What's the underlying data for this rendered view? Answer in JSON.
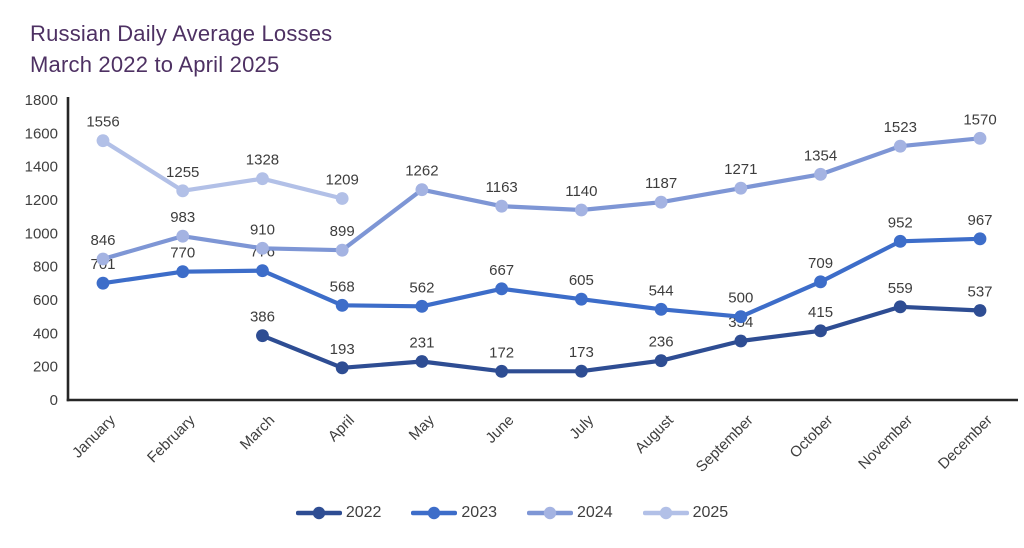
{
  "title": {
    "line1": "Russian Daily Average Losses",
    "line2": "March 2022 to April 2025"
  },
  "chart_data": {
    "type": "line",
    "categories": [
      "January",
      "February",
      "March",
      "April",
      "May",
      "June",
      "July",
      "August",
      "September",
      "October",
      "November",
      "December"
    ],
    "series": [
      {
        "name": "2022",
        "color": "#2e4d93",
        "marker_color": "#2e4d93",
        "values": [
          null,
          null,
          386,
          193,
          231,
          172,
          173,
          236,
          354,
          415,
          559,
          537
        ]
      },
      {
        "name": "2023",
        "color": "#3d6dc9",
        "marker_color": "#3d6dc9",
        "values": [
          701,
          770,
          776,
          568,
          562,
          667,
          605,
          544,
          500,
          709,
          952,
          967
        ]
      },
      {
        "name": "2024",
        "color": "#7e96d5",
        "marker_color": "#a4b3e2",
        "values": [
          846,
          983,
          910,
          899,
          1262,
          1163,
          1140,
          1187,
          1271,
          1354,
          1523,
          1570
        ]
      },
      {
        "name": "2025",
        "color": "#b2c0e7",
        "marker_color": "#b2c0e7",
        "values": [
          1556,
          1255,
          1328,
          1209,
          null,
          null,
          null,
          null,
          null,
          null,
          null,
          null
        ]
      }
    ],
    "ylim": [
      0,
      1800
    ],
    "yticks": [
      0,
      200,
      400,
      600,
      800,
      1000,
      1200,
      1400,
      1600,
      1800
    ],
    "grid": false,
    "legend_position": "bottom",
    "title": "Russian Daily Average Losses March 2022 to April 2025",
    "xlabel": "",
    "ylabel": ""
  },
  "colors": {
    "title": "#4e3163",
    "axis": "#262626",
    "tick_text": "#3f3f3f",
    "data_label": "#3d3d3d"
  }
}
